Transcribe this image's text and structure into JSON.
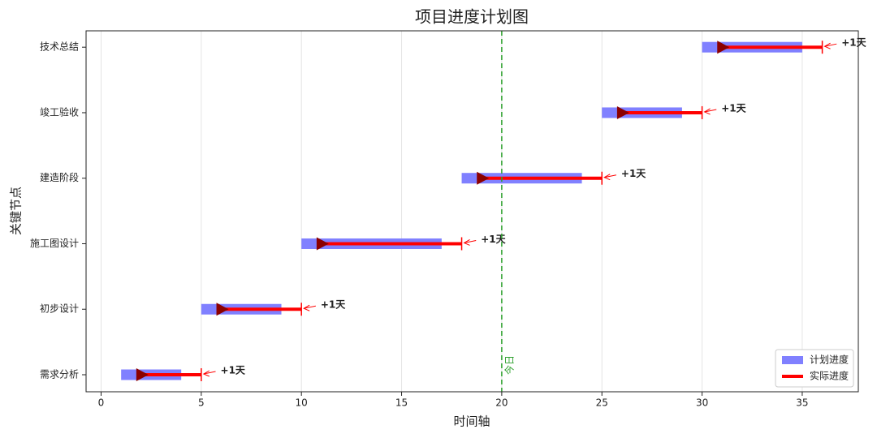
{
  "chart_data": {
    "type": "gantt",
    "title": "项目进度计划图",
    "xlabel": "时间轴",
    "ylabel": "关键节点",
    "categories": [
      "需求分析",
      "初步设计",
      "施工图设计",
      "建造阶段",
      "竣工验收",
      "技术总结"
    ],
    "series": [
      {
        "name": "计划进度",
        "color": "#8080ff",
        "start": [
          1,
          5,
          10,
          18,
          25,
          30
        ],
        "end": [
          4,
          9,
          17,
          24,
          29,
          35
        ]
      },
      {
        "name": "实际进度",
        "color": "#ff0000",
        "marker_color": "#8b0000",
        "start": [
          2,
          6,
          11,
          19,
          26,
          31
        ],
        "end": [
          5,
          10,
          18,
          25,
          30,
          36
        ]
      }
    ],
    "delays": [
      1,
      1,
      1,
      1,
      1,
      1
    ],
    "delay_labels": [
      "+1天",
      "+1天",
      "+1天",
      "+1天",
      "+1天",
      "+1天"
    ],
    "today": {
      "value": 20,
      "label": "今日",
      "color": "#2ca02c"
    },
    "xlim": [
      -0.75,
      37.8
    ],
    "xticks": [
      0,
      5,
      10,
      15,
      20,
      25,
      30,
      35
    ],
    "grid": true,
    "legend": "lower right"
  }
}
